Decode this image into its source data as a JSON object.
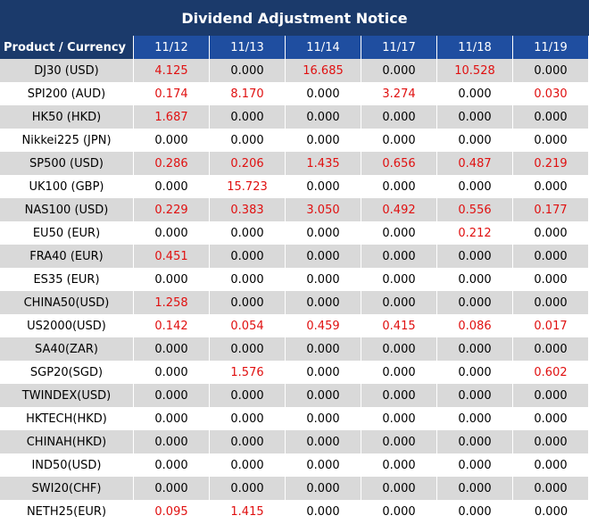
{
  "title": "Dividend Adjustment Notice",
  "table": {
    "header": [
      "Product / Currency",
      "11/12",
      "11/13",
      "11/14",
      "11/17",
      "11/18",
      "11/19"
    ],
    "rows": [
      [
        "DJ30 (USD)",
        "4.125",
        "0.000",
        "16.685",
        "0.000",
        "10.528",
        "0.000"
      ],
      [
        "SPI200 (AUD)",
        "0.174",
        "8.170",
        "0.000",
        "3.274",
        "0.000",
        "0.030"
      ],
      [
        "HK50 (HKD)",
        "1.687",
        "0.000",
        "0.000",
        "0.000",
        "0.000",
        "0.000"
      ],
      [
        "Nikkei225 (JPN)",
        "0.000",
        "0.000",
        "0.000",
        "0.000",
        "0.000",
        "0.000"
      ],
      [
        "SP500 (USD)",
        "0.286",
        "0.206",
        "1.435",
        "0.656",
        "0.487",
        "0.219"
      ],
      [
        "UK100 (GBP)",
        "0.000",
        "15.723",
        "0.000",
        "0.000",
        "0.000",
        "0.000"
      ],
      [
        "NAS100 (USD)",
        "0.229",
        "0.383",
        "3.050",
        "0.492",
        "0.556",
        "0.177"
      ],
      [
        "EU50 (EUR)",
        "0.000",
        "0.000",
        "0.000",
        "0.000",
        "0.212",
        "0.000"
      ],
      [
        "FRA40 (EUR)",
        "0.451",
        "0.000",
        "0.000",
        "0.000",
        "0.000",
        "0.000"
      ],
      [
        "ES35 (EUR)",
        "0.000",
        "0.000",
        "0.000",
        "0.000",
        "0.000",
        "0.000"
      ],
      [
        "CHINA50(USD)",
        "1.258",
        "0.000",
        "0.000",
        "0.000",
        "0.000",
        "0.000"
      ],
      [
        "US2000(USD)",
        "0.142",
        "0.054",
        "0.459",
        "0.415",
        "0.086",
        "0.017"
      ],
      [
        "SA40(ZAR)",
        "0.000",
        "0.000",
        "0.000",
        "0.000",
        "0.000",
        "0.000"
      ],
      [
        "SGP20(SGD)",
        "0.000",
        "1.576",
        "0.000",
        "0.000",
        "0.000",
        "0.602"
      ],
      [
        "TWINDEX(USD)",
        "0.000",
        "0.000",
        "0.000",
        "0.000",
        "0.000",
        "0.000"
      ],
      [
        "HKTECH(HKD)",
        "0.000",
        "0.000",
        "0.000",
        "0.000",
        "0.000",
        "0.000"
      ],
      [
        "CHINAH(HKD)",
        "0.000",
        "0.000",
        "0.000",
        "0.000",
        "0.000",
        "0.000"
      ],
      [
        "IND50(USD)",
        "0.000",
        "0.000",
        "0.000",
        "0.000",
        "0.000",
        "0.000"
      ],
      [
        "SWI20(CHF)",
        "0.000",
        "0.000",
        "0.000",
        "0.000",
        "0.000",
        "0.000"
      ],
      [
        "NETH25(EUR)",
        "0.095",
        "1.415",
        "0.000",
        "0.000",
        "0.000",
        "0.000"
      ]
    ]
  }
}
